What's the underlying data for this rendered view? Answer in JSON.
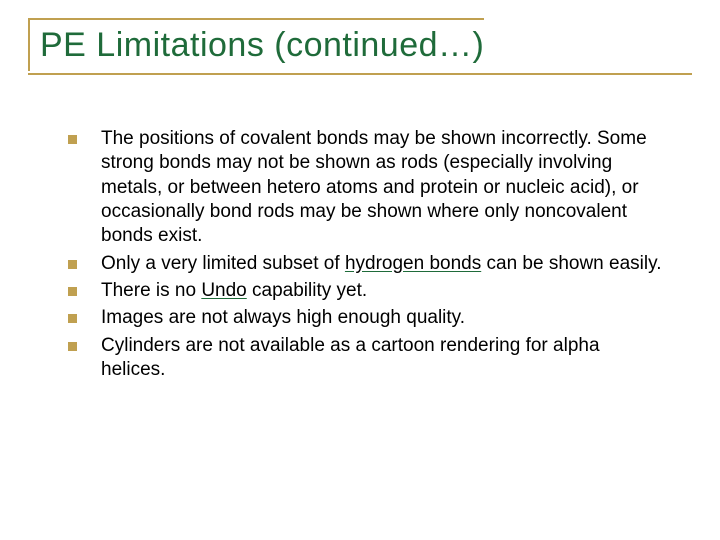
{
  "title": "PE Limitations (continued…)",
  "title_color": "#1f6b3a",
  "title_fontsize": 34,
  "border_color": "#c0a050",
  "bullet_color": "#c0a050",
  "bullet_size": 9,
  "body_fontsize": 19,
  "body_color": "#000000",
  "underline_color": "#1f6b3a",
  "bullets": [
    {
      "text": "The positions of covalent bonds may be shown incorrectly. Some strong bonds may not be shown as rods (especially involving metals, or between hetero atoms and protein or nucleic acid), or occasionally bond rods may be shown where only noncovalent bonds exist."
    },
    {
      "pre": "Only a very limited subset of ",
      "link": "hydrogen bonds",
      "post": " can be shown easily."
    },
    {
      "pre": "There is no ",
      "link": "Undo",
      "post": " capability yet."
    },
    {
      "text": "Images are not always high enough quality."
    },
    {
      "text": "Cylinders are not available as a cartoon rendering for alpha helices."
    }
  ]
}
